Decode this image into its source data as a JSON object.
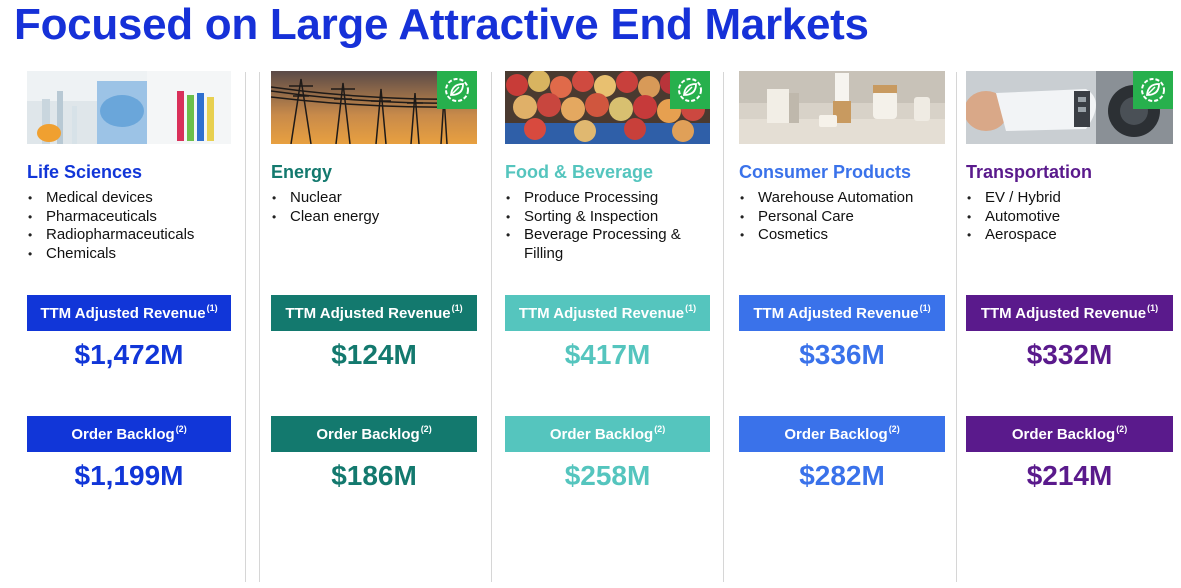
{
  "title": "Focused on Large Attractive End Markets",
  "labels": {
    "revenue": "TTM Adjusted Revenue",
    "revenue_note": "(1)",
    "backlog": "Order Backlog",
    "backlog_note": "(2)"
  },
  "markets": [
    {
      "name": "Life Sciences",
      "color": "#1136d8",
      "items": [
        "Medical devices",
        "Pharmaceuticals",
        "Radiopharmaceuticals",
        "Chemicals"
      ],
      "revenue": "$1,472M",
      "backlog": "$1,199M",
      "photo": "lab-scientist-photo",
      "eco_badge": false
    },
    {
      "name": "Energy",
      "color": "#13796e",
      "items": [
        "Nuclear",
        "Clean energy"
      ],
      "revenue": "$124M",
      "backlog": "$186M",
      "photo": "power-lines-photo",
      "eco_badge": true
    },
    {
      "name": "Food & Beverage",
      "color": "#55c5be",
      "items": [
        "Produce Processing",
        "Sorting & Inspection",
        "Beverage Processing & Filling"
      ],
      "revenue": "$417M",
      "backlog": "$258M",
      "photo": "apples-photo",
      "eco_badge": true
    },
    {
      "name": "Consumer Products",
      "color": "#3a72ea",
      "items": [
        "Warehouse Automation",
        "Personal Care",
        "Cosmetics"
      ],
      "revenue": "$336M",
      "backlog": "$282M",
      "photo": "cosmetics-photo",
      "eco_badge": false
    },
    {
      "name": "Transportation",
      "color": "#5a1a8c",
      "items": [
        "EV / Hybrid",
        "Automotive",
        "Aerospace"
      ],
      "revenue": "$332M",
      "backlog": "$214M",
      "photo": "ev-charger-photo",
      "eco_badge": true
    }
  ]
}
